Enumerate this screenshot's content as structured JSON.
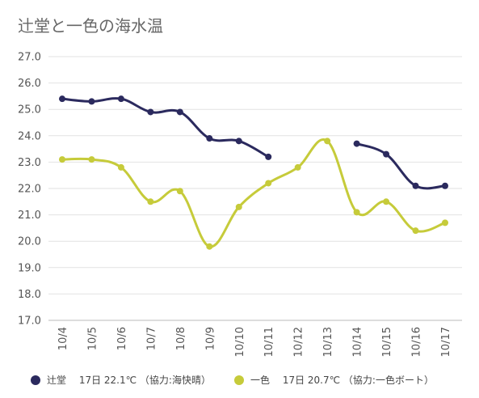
{
  "chart_data": {
    "type": "line",
    "title": "辻堂と一色の海水温",
    "categories": [
      "10/4",
      "10/5",
      "10/6",
      "10/7",
      "10/8",
      "10/9",
      "10/10",
      "10/11",
      "10/12",
      "10/13",
      "10/14",
      "10/15",
      "10/16",
      "10/17"
    ],
    "y_ticks": [
      "17.0",
      "18.0",
      "19.0",
      "20.0",
      "21.0",
      "22.0",
      "23.0",
      "24.0",
      "25.0",
      "26.0",
      "27.0"
    ],
    "ylim": [
      17,
      27
    ],
    "grid": true,
    "legend_position": "bottom",
    "series": [
      {
        "name": "辻堂",
        "legend_label": "辻堂　 17日 22.1℃ （協力:海快晴）",
        "color": "#2b2a5e",
        "values": [
          25.4,
          25.3,
          25.4,
          24.9,
          24.9,
          23.9,
          23.8,
          23.2,
          null,
          null,
          23.7,
          23.3,
          22.1,
          22.1
        ]
      },
      {
        "name": "一色",
        "legend_label": "一色　 17日 20.7℃ （協力:一色ボート）",
        "color": "#c6cb3a",
        "values": [
          23.1,
          23.1,
          22.8,
          21.5,
          21.9,
          19.8,
          21.3,
          22.2,
          22.8,
          23.8,
          21.1,
          21.5,
          20.4,
          20.7
        ]
      }
    ]
  }
}
